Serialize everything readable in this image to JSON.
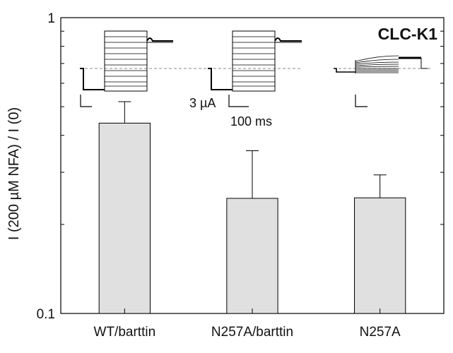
{
  "chart_data": {
    "type": "bar",
    "title": "CLC-K1",
    "categories": [
      "WT/barttin",
      "N257A/barttin",
      "N257A"
    ],
    "values": [
      0.44,
      0.245,
      0.246
    ],
    "error_plus": [
      0.08,
      0.11,
      0.048
    ],
    "ylabel": "I (200 µM NFA) / I (0)",
    "xlabel": "",
    "y_scale": "log",
    "ylim": [
      0.1,
      1
    ],
    "y_tick_labels": [
      "1",
      "0.1"
    ],
    "grid": false,
    "bar_color": "#e0e0e0",
    "inset_scale_bar": {
      "current_label": "3 µA",
      "time_label": "100 ms"
    }
  }
}
